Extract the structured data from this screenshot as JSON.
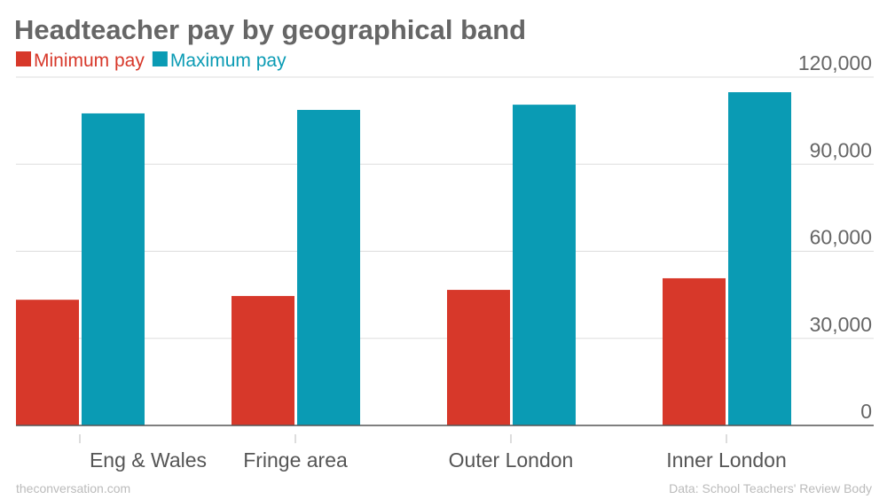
{
  "chart_data": {
    "type": "bar",
    "title": "Headteacher pay by geographical band",
    "categories": [
      "Eng & Wales",
      "Fringe area",
      "Outer London",
      "Inner London"
    ],
    "series": [
      {
        "name": "Minimum pay",
        "color": "#d7382a",
        "values": [
          43300,
          44600,
          46700,
          50700
        ]
      },
      {
        "name": "Maximum pay",
        "color": "#0a9bb4",
        "values": [
          107500,
          108700,
          110500,
          114800
        ]
      }
    ],
    "ylim": [
      0,
      120000
    ],
    "yticks": [
      0,
      {
        "value": 30000,
        "label": "30,000"
      },
      {
        "value": 60000,
        "label": "60,000"
      },
      {
        "value": 90000,
        "label": "90,000"
      },
      {
        "value": 120000,
        "label": "120,000"
      }
    ],
    "grid": true,
    "credit": "theconversation.com",
    "source": "Data: School Teachers' Review Body"
  }
}
